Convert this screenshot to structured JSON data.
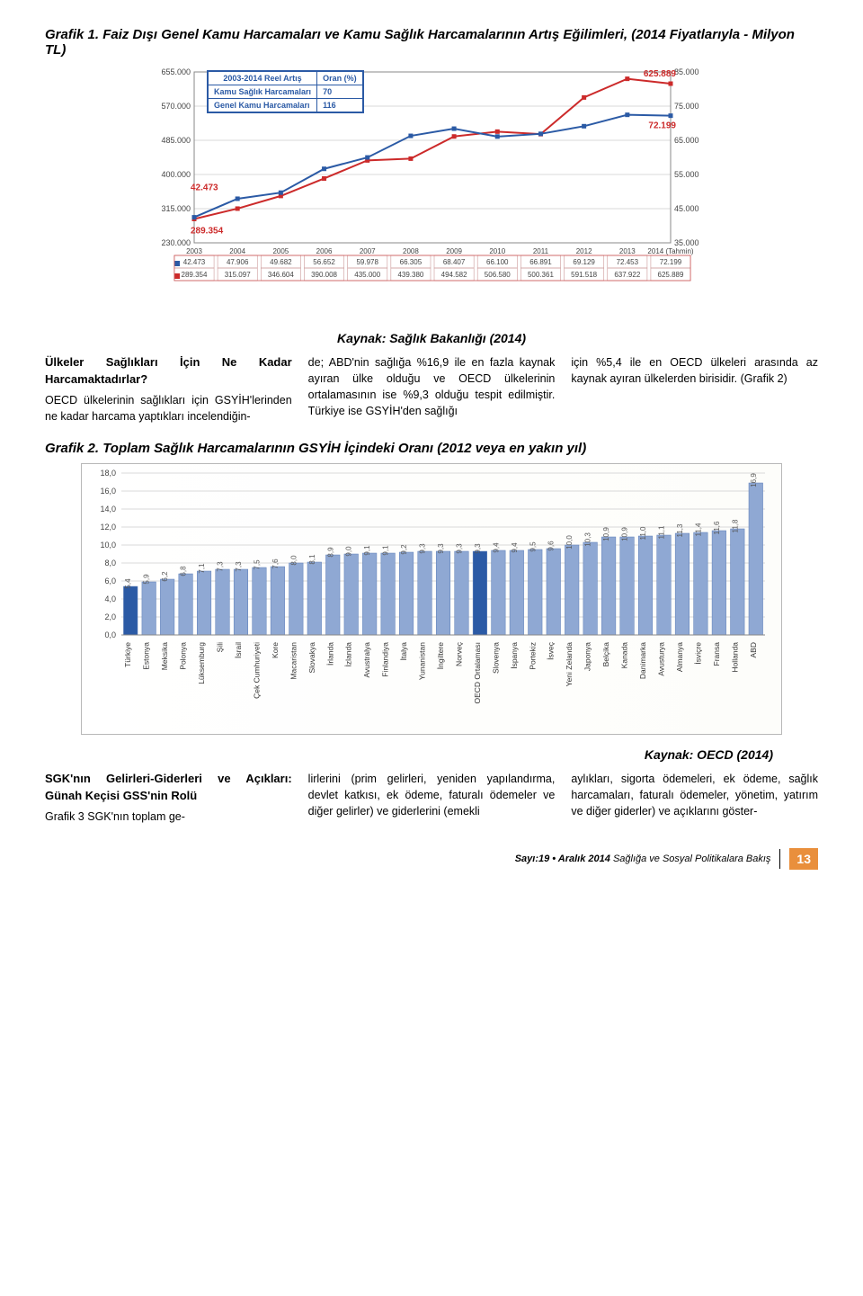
{
  "chart1": {
    "title": "Grafik 1. Faiz Dışı Genel Kamu Harcamaları ve Kamu Sağlık Harcamalarının Artış Eğilimleri, (2014 Fiyatlarıyla - Milyon TL)",
    "source": "Kaynak: Sağlık Bakanlığı (2014)",
    "legend_header": "2003-2014 Reel Artış",
    "legend_col": "Oran (%)",
    "legend_rows": [
      {
        "label": "Kamu Sağlık Harcamaları",
        "value": "70"
      },
      {
        "label": "Genel Kamu Harcamaları",
        "value": "116"
      }
    ],
    "left_axis": {
      "min": 230000,
      "max": 655000,
      "ticks": [
        230000,
        315000,
        400000,
        485000,
        570000,
        655000
      ],
      "labels": [
        "230.000",
        "315.000",
        "400.000",
        "485.000",
        "570.000",
        "655.000"
      ]
    },
    "right_axis": {
      "min": 35000,
      "max": 85000,
      "ticks": [
        35000,
        45000,
        55000,
        65000,
        75000,
        85000
      ],
      "labels": [
        "35.000",
        "45.000",
        "55.000",
        "65.000",
        "75.000",
        "85.000"
      ]
    },
    "callouts": [
      {
        "text": "42.473",
        "series": "blue",
        "idx": 0,
        "dy": -30
      },
      {
        "text": "289.354",
        "series": "red",
        "idx": 0,
        "dy": 16
      },
      {
        "text": "625.889",
        "series": "red",
        "idx": 11,
        "dy": -8
      },
      {
        "text": "72.199",
        "series": "blue",
        "idx": 11,
        "dy": 14
      }
    ],
    "x_categories": [
      "2003",
      "2004",
      "2005",
      "2006",
      "2007",
      "2008",
      "2009",
      "2010",
      "2011",
      "2012",
      "2013",
      "2014 (Tahmin)"
    ],
    "series_blue": {
      "color": "#2b5aa5",
      "values": [
        42473,
        47906,
        49682,
        56652,
        59978,
        66305,
        68407,
        66100,
        66891,
        69129,
        72453,
        72199
      ]
    },
    "series_red": {
      "color": "#cc2a2a",
      "values": [
        289354,
        315097,
        346604,
        390008,
        435000,
        439380,
        494582,
        506580,
        500361,
        591518,
        637922,
        625889
      ]
    },
    "table_rows": [
      [
        "42.473",
        "47.906",
        "49.682",
        "56.652",
        "59.978",
        "66.305",
        "68.407",
        "66.100",
        "66.891",
        "69.129",
        "72.453",
        "72.199"
      ],
      [
        "289.354",
        "315.097",
        "346.604",
        "390.008",
        "435.000",
        "439.380",
        "494.582",
        "506.580",
        "500.361",
        "591.518",
        "637.922",
        "625.889"
      ]
    ],
    "background": "#ffffff",
    "grid_color": "#d9d9d9",
    "line_width": 2
  },
  "para1": {
    "col1_heading": "Ülkeler Sağlıkları İçin Ne Kadar Harcamaktadırlar?",
    "col1_body": "OECD ülkelerinin sağlıkları için GSYİH'lerinden ne kadar harcama yaptıkları incelendiğin-",
    "col2_body": "de; ABD'nin sağlığa %16,9 ile en fazla kaynak ayıran ülke olduğu ve OECD ülkelerinin ortalamasının ise %9,3 olduğu tespit edilmiştir. Türkiye ise GSYİH'den sağlığı",
    "col3_body": "için %5,4 ile en OECD ülkeleri arasında az kaynak ayıran ülkelerden birisidir. (Grafik 2)"
  },
  "chart2": {
    "title": "Grafik 2. Toplam Sağlık Harcamalarının GSYİH İçindeki Oranı (2012 veya en yakın yıl)",
    "source": "Kaynak: OECD (2014)",
    "y_axis": {
      "min": 0,
      "max": 18,
      "step": 2,
      "labels": [
        "0,0",
        "2,0",
        "4,0",
        "6,0",
        "8,0",
        "10,0",
        "12,0",
        "14,0",
        "16,0",
        "18,0"
      ]
    },
    "highlight_color": "#2b5aa5",
    "bar_color": "#8fa8d3",
    "bar_border": "#5a7cb8",
    "grid_color": "#d9d9d9",
    "background": "#ffffff",
    "bars": [
      {
        "label": "Türkiye",
        "value": 5.4,
        "highlight": true
      },
      {
        "label": "Estonya",
        "value": 5.9
      },
      {
        "label": "Meksika",
        "value": 6.2
      },
      {
        "label": "Polonya",
        "value": 6.8
      },
      {
        "label": "Lüksemburg",
        "value": 7.1
      },
      {
        "label": "Şili",
        "value": 7.3
      },
      {
        "label": "İsrail",
        "value": 7.3
      },
      {
        "label": "Çek Cumhuriyeti",
        "value": 7.5
      },
      {
        "label": "Kore",
        "value": 7.6
      },
      {
        "label": "Macaristan",
        "value": 8.0
      },
      {
        "label": "Slovakya",
        "value": 8.1
      },
      {
        "label": "İrlanda",
        "value": 8.9
      },
      {
        "label": "İzlanda",
        "value": 9.0
      },
      {
        "label": "Avustralya",
        "value": 9.1
      },
      {
        "label": "Finlandiya",
        "value": 9.1
      },
      {
        "label": "İtalya",
        "value": 9.2
      },
      {
        "label": "Yunanistan",
        "value": 9.3
      },
      {
        "label": "İngiltere",
        "value": 9.3
      },
      {
        "label": "Norveç",
        "value": 9.3
      },
      {
        "label": "OECD Ortalaması",
        "value": 9.3,
        "highlight": true
      },
      {
        "label": "Slovenya",
        "value": 9.4
      },
      {
        "label": "İspanya",
        "value": 9.4
      },
      {
        "label": "Portekiz",
        "value": 9.5
      },
      {
        "label": "İsveç",
        "value": 9.6
      },
      {
        "label": "Yeni Zelanda",
        "value": 10.0
      },
      {
        "label": "Japonya",
        "value": 10.3
      },
      {
        "label": "Belçika",
        "value": 10.9
      },
      {
        "label": "Kanada",
        "value": 10.9
      },
      {
        "label": "Danimarka",
        "value": 11.0
      },
      {
        "label": "Avusturya",
        "value": 11.1
      },
      {
        "label": "Almanya",
        "value": 11.3
      },
      {
        "label": "İsviçre",
        "value": 11.4
      },
      {
        "label": "Fransa",
        "value": 11.6
      },
      {
        "label": "Hollanda",
        "value": 11.8
      },
      {
        "label": "ABD",
        "value": 16.9
      }
    ]
  },
  "para2": {
    "col1_heading": "SGK'nın Gelirleri-Giderleri ve Açıkları: Günah Keçisi GSS'nin Rolü",
    "col1_body": "Grafik 3 SGK'nın toplam ge-",
    "col2_body": "lirlerini (prim gelirleri, yeniden yapılandırma, devlet katkısı, ek ödeme, faturalı ödemeler ve diğer gelirler) ve giderlerini (emekli",
    "col3_body": "aylıkları, sigorta ödemeleri, ek ödeme, sağlık harcamaları, faturalı ödemeler, yönetim, yatırım ve diğer giderler) ve açıklarını göster-"
  },
  "footer": {
    "issue": "Sayı:19 • Aralık 2014",
    "journal": "Sağlığa ve Sosyal Politikalara Bakış",
    "page": "13"
  }
}
